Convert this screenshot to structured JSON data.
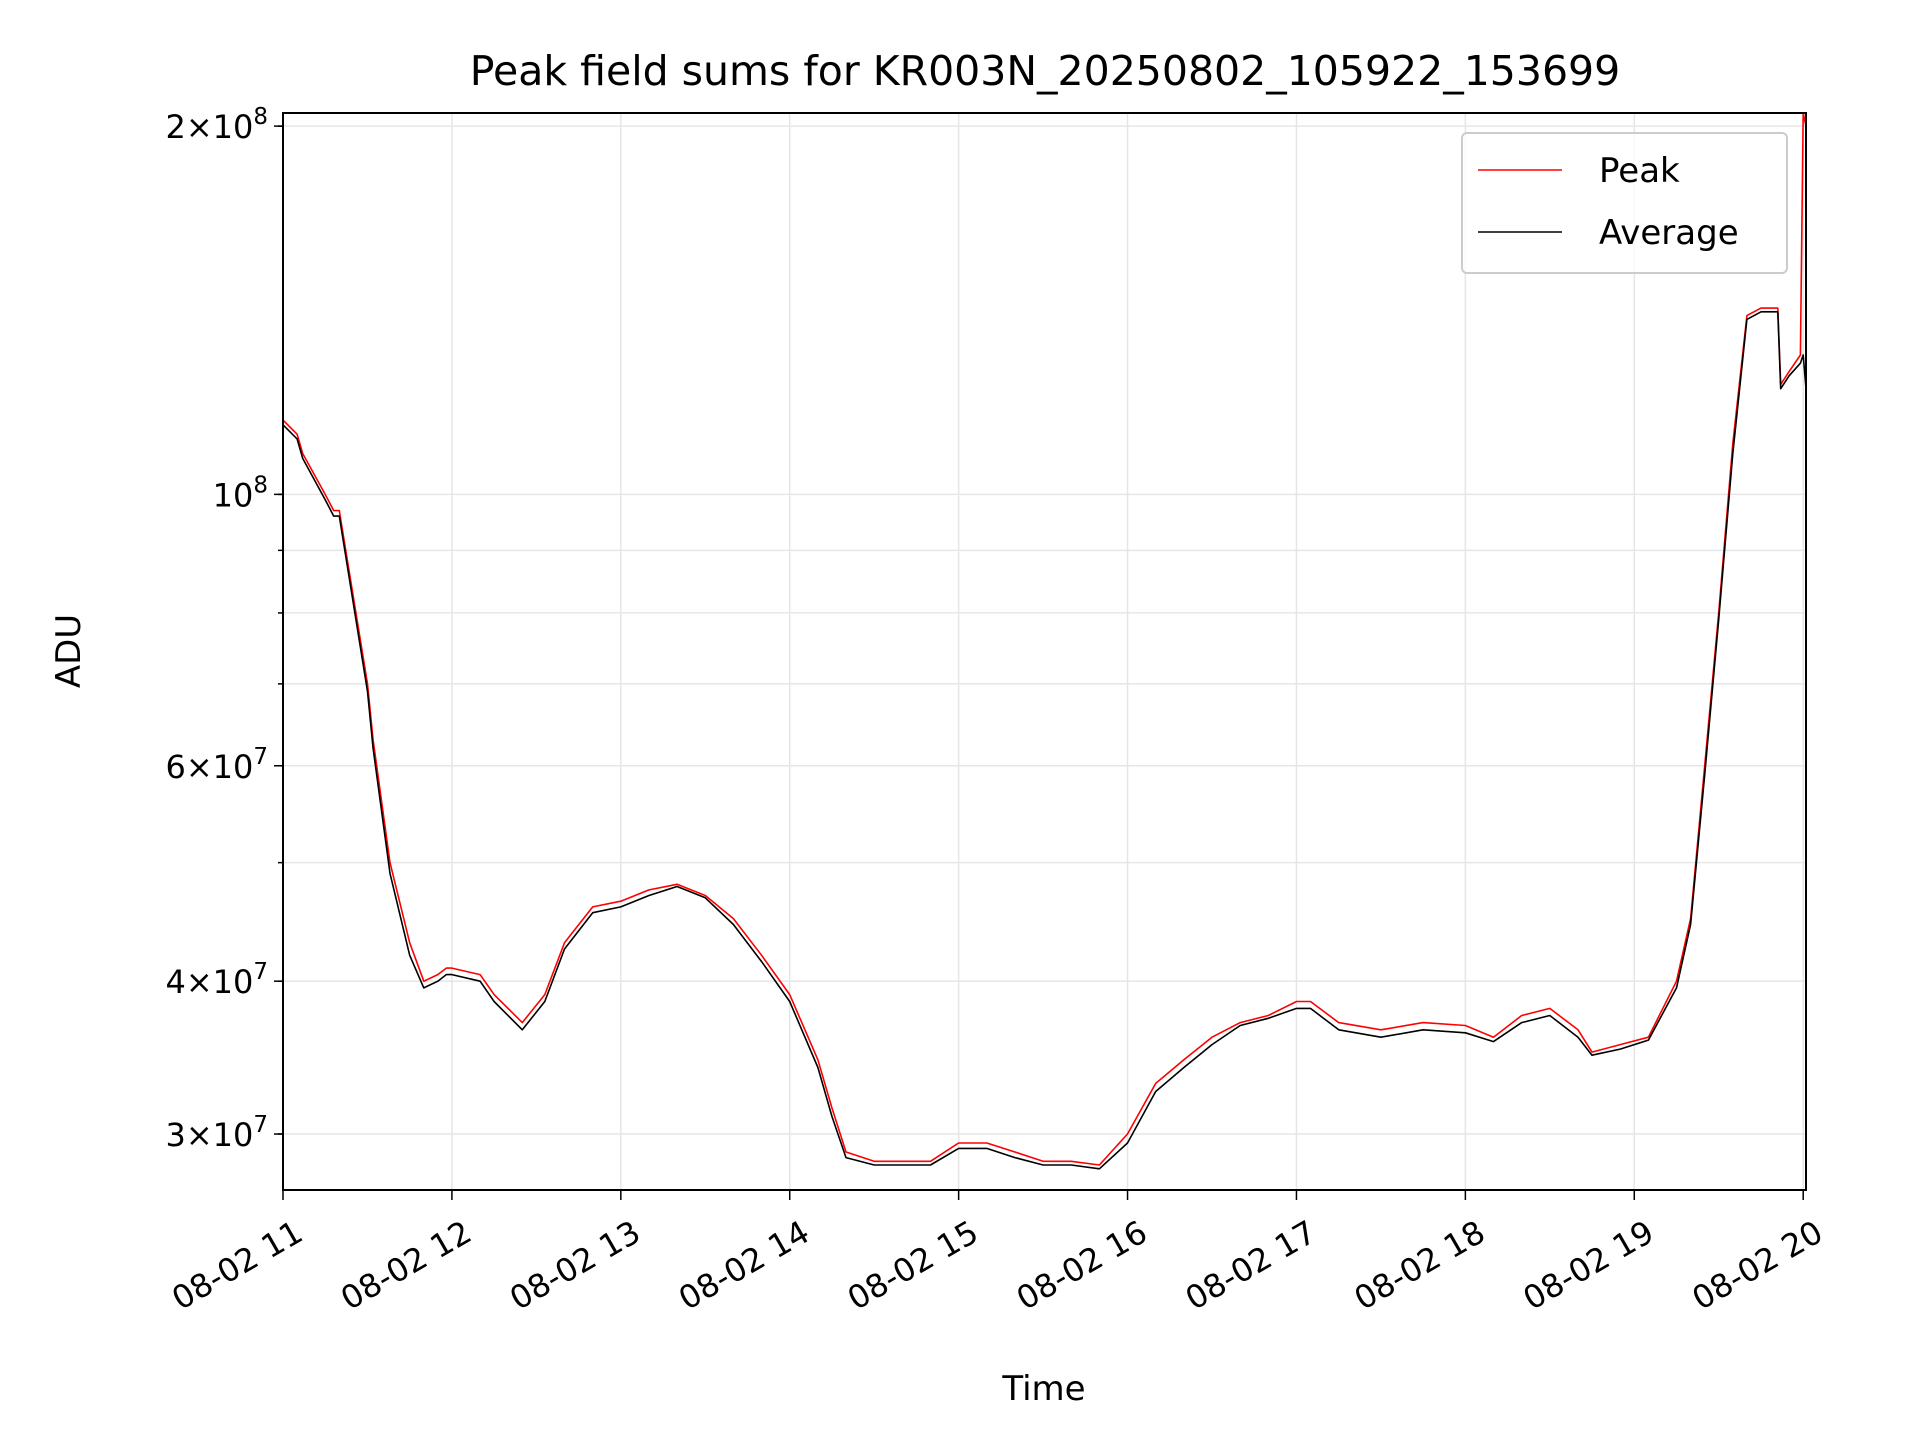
{
  "chart_data": {
    "type": "line",
    "title": "Peak field sums for KR003N_20250802_105922_153699",
    "xlabel": "Time",
    "ylabel": "ADU",
    "yscale": "log",
    "xlim": [
      "2025-08-02 11:00",
      "2025-08-02 20:01"
    ],
    "ylim": [
      27000000,
      205000000
    ],
    "x_ticks": [
      "08-02 11",
      "08-02 12",
      "08-02 13",
      "08-02 14",
      "08-02 15",
      "08-02 16",
      "08-02 17",
      "08-02 18",
      "08-02 19",
      "08-02 20"
    ],
    "y_ticks": [
      {
        "value": 30000000,
        "mant": "3",
        "exp": "7"
      },
      {
        "value": 40000000,
        "mant": "4",
        "exp": "7"
      },
      {
        "value": 60000000,
        "mant": "6",
        "exp": "7"
      },
      {
        "value": 100000000,
        "mant": "",
        "exp": "8"
      },
      {
        "value": 200000000,
        "mant": "2",
        "exp": "8"
      }
    ],
    "grid": true,
    "legend_position": "top-right",
    "series": [
      {
        "name": "Peak",
        "color": "#ff0000",
        "x": [
          "2025-08-02 11:00",
          "2025-08-02 11:05",
          "2025-08-02 11:07",
          "2025-08-02 11:15",
          "2025-08-02 11:18",
          "2025-08-02 11:20",
          "2025-08-02 11:30",
          "2025-08-02 11:32",
          "2025-08-02 11:38",
          "2025-08-02 11:45",
          "2025-08-02 11:50",
          "2025-08-02 11:55",
          "2025-08-02 11:58",
          "2025-08-02 12:00",
          "2025-08-02 12:10",
          "2025-08-02 12:15",
          "2025-08-02 12:25",
          "2025-08-02 12:33",
          "2025-08-02 12:40",
          "2025-08-02 12:50",
          "2025-08-02 13:00",
          "2025-08-02 13:10",
          "2025-08-02 13:20",
          "2025-08-02 13:30",
          "2025-08-02 13:40",
          "2025-08-02 13:50",
          "2025-08-02 14:00",
          "2025-08-02 14:10",
          "2025-08-02 14:15",
          "2025-08-02 14:20",
          "2025-08-02 14:30",
          "2025-08-02 14:40",
          "2025-08-02 14:50",
          "2025-08-02 15:00",
          "2025-08-02 15:10",
          "2025-08-02 15:20",
          "2025-08-02 15:30",
          "2025-08-02 15:40",
          "2025-08-02 15:50",
          "2025-08-02 16:00",
          "2025-08-02 16:10",
          "2025-08-02 16:20",
          "2025-08-02 16:30",
          "2025-08-02 16:40",
          "2025-08-02 16:50",
          "2025-08-02 17:00",
          "2025-08-02 17:05",
          "2025-08-02 17:15",
          "2025-08-02 17:30",
          "2025-08-02 17:45",
          "2025-08-02 18:00",
          "2025-08-02 18:10",
          "2025-08-02 18:20",
          "2025-08-02 18:30",
          "2025-08-02 18:40",
          "2025-08-02 18:45",
          "2025-08-02 18:55",
          "2025-08-02 19:05",
          "2025-08-02 19:15",
          "2025-08-02 19:20",
          "2025-08-02 19:25",
          "2025-08-02 19:30",
          "2025-08-02 19:35",
          "2025-08-02 19:40",
          "2025-08-02 19:45",
          "2025-08-02 19:51",
          "2025-08-02 19:52",
          "2025-08-02 19:55",
          "2025-08-02 19:59",
          "2025-08-02 20:00",
          "2025-08-02 20:01"
        ],
        "values": [
          115000000,
          112000000,
          108000000,
          100000000,
          97000000,
          97000000,
          70000000,
          63000000,
          50000000,
          43000000,
          40000000,
          40500000,
          41000000,
          41000000,
          40500000,
          39000000,
          37000000,
          39000000,
          43000000,
          46000000,
          46500000,
          47500000,
          48000000,
          47000000,
          45000000,
          42000000,
          39000000,
          34500000,
          31500000,
          29000000,
          28500000,
          28500000,
          28500000,
          29500000,
          29500000,
          29000000,
          28500000,
          28500000,
          28300000,
          30000000,
          33000000,
          34500000,
          36000000,
          37000000,
          37500000,
          38500000,
          38500000,
          37000000,
          36500000,
          37000000,
          36800000,
          36000000,
          37500000,
          38000000,
          36500000,
          35000000,
          35500000,
          36000000,
          40000000,
          45000000,
          60000000,
          80000000,
          110000000,
          140000000,
          142000000,
          142000000,
          123000000,
          126000000,
          130000000,
          205000000,
          200000000
        ]
      },
      {
        "name": "Average",
        "color": "#000000",
        "x": [
          "2025-08-02 11:00",
          "2025-08-02 11:05",
          "2025-08-02 11:07",
          "2025-08-02 11:15",
          "2025-08-02 11:18",
          "2025-08-02 11:20",
          "2025-08-02 11:30",
          "2025-08-02 11:32",
          "2025-08-02 11:38",
          "2025-08-02 11:45",
          "2025-08-02 11:50",
          "2025-08-02 11:55",
          "2025-08-02 11:58",
          "2025-08-02 12:00",
          "2025-08-02 12:10",
          "2025-08-02 12:15",
          "2025-08-02 12:25",
          "2025-08-02 12:33",
          "2025-08-02 12:40",
          "2025-08-02 12:50",
          "2025-08-02 13:00",
          "2025-08-02 13:10",
          "2025-08-02 13:20",
          "2025-08-02 13:30",
          "2025-08-02 13:40",
          "2025-08-02 13:50",
          "2025-08-02 14:00",
          "2025-08-02 14:10",
          "2025-08-02 14:15",
          "2025-08-02 14:20",
          "2025-08-02 14:30",
          "2025-08-02 14:40",
          "2025-08-02 14:50",
          "2025-08-02 15:00",
          "2025-08-02 15:10",
          "2025-08-02 15:20",
          "2025-08-02 15:30",
          "2025-08-02 15:40",
          "2025-08-02 15:50",
          "2025-08-02 16:00",
          "2025-08-02 16:10",
          "2025-08-02 16:20",
          "2025-08-02 16:30",
          "2025-08-02 16:40",
          "2025-08-02 16:50",
          "2025-08-02 17:00",
          "2025-08-02 17:05",
          "2025-08-02 17:15",
          "2025-08-02 17:30",
          "2025-08-02 17:45",
          "2025-08-02 18:00",
          "2025-08-02 18:10",
          "2025-08-02 18:20",
          "2025-08-02 18:30",
          "2025-08-02 18:40",
          "2025-08-02 18:45",
          "2025-08-02 18:55",
          "2025-08-02 19:05",
          "2025-08-02 19:15",
          "2025-08-02 19:20",
          "2025-08-02 19:25",
          "2025-08-02 19:30",
          "2025-08-02 19:35",
          "2025-08-02 19:40",
          "2025-08-02 19:45",
          "2025-08-02 19:51",
          "2025-08-02 19:52",
          "2025-08-02 19:55",
          "2025-08-02 19:59",
          "2025-08-02 20:00",
          "2025-08-02 20:01"
        ],
        "values": [
          114000000,
          111000000,
          107000000,
          99000000,
          96000000,
          96000000,
          69000000,
          62000000,
          49000000,
          42000000,
          39500000,
          40000000,
          40500000,
          40500000,
          40000000,
          38500000,
          36500000,
          38500000,
          42500000,
          45500000,
          46000000,
          47000000,
          47800000,
          46800000,
          44500000,
          41500000,
          38500000,
          34000000,
          31000000,
          28700000,
          28300000,
          28300000,
          28300000,
          29200000,
          29200000,
          28700000,
          28300000,
          28300000,
          28100000,
          29500000,
          32500000,
          34000000,
          35500000,
          36800000,
          37300000,
          38000000,
          38000000,
          36500000,
          36000000,
          36500000,
          36300000,
          35700000,
          37000000,
          37500000,
          36000000,
          34800000,
          35200000,
          35800000,
          39500000,
          44500000,
          59000000,
          79000000,
          108000000,
          139000000,
          141000000,
          141000000,
          122000000,
          125000000,
          128000000,
          130000000,
          122000000
        ]
      }
    ],
    "annotations": []
  }
}
